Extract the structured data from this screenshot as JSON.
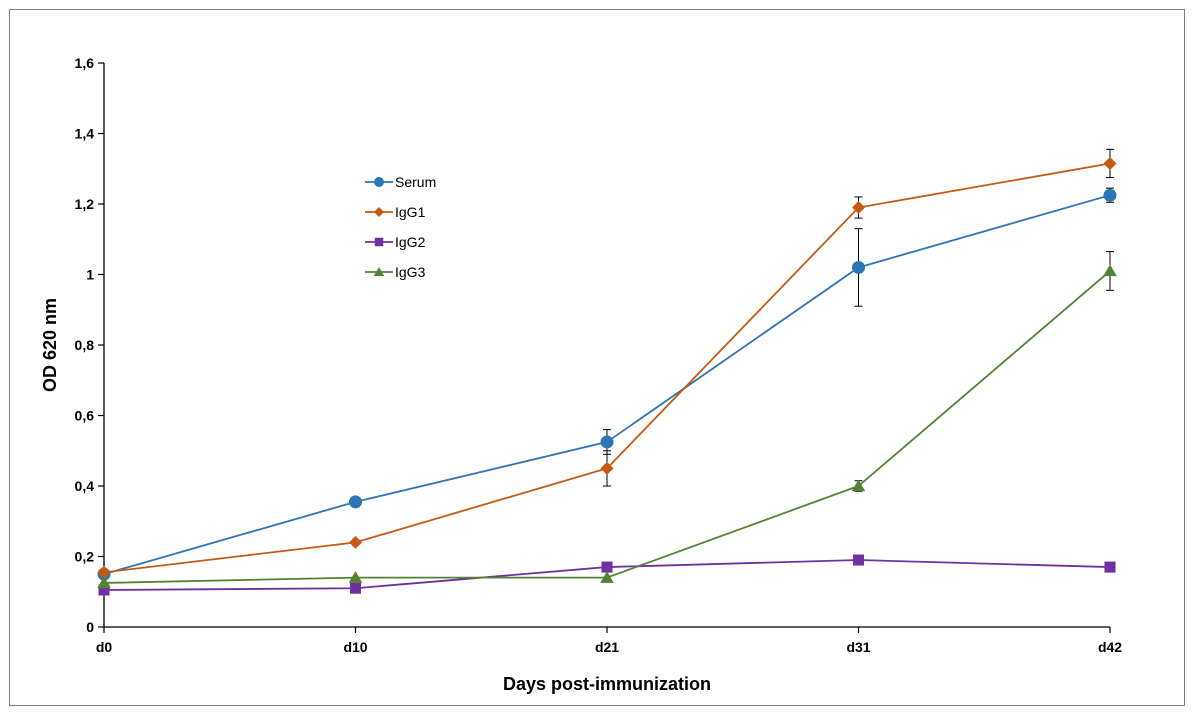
{
  "chart_data": {
    "type": "line",
    "title": "",
    "xlabel": "Days post-immunization",
    "ylabel": "OD 620 nm",
    "categories": [
      "d0",
      "d10",
      "d21",
      "d31",
      "d42"
    ],
    "ylim": [
      0,
      1.6
    ],
    "yticks": [
      "0",
      "0,2",
      "0,4",
      "0,6",
      "0,8",
      "1",
      "1,2",
      "1,4",
      "1,6"
    ],
    "grid": false,
    "legend_position": "upper-left-center",
    "series": [
      {
        "name": "Serum",
        "color": "#2e75b6",
        "marker": "circle",
        "values": [
          0.15,
          0.355,
          0.525,
          1.02,
          1.225
        ],
        "errors": [
          0,
          0,
          0.035,
          0.11,
          0.02
        ]
      },
      {
        "name": "IgG1",
        "color": "#c55a11",
        "marker": "diamond",
        "values": [
          0.155,
          0.24,
          0.45,
          1.19,
          1.315
        ],
        "errors": [
          0,
          0,
          0.05,
          0.03,
          0.04
        ]
      },
      {
        "name": "IgG2",
        "color": "#7030a0",
        "marker": "square",
        "values": [
          0.105,
          0.11,
          0.17,
          0.19,
          0.17
        ],
        "errors": [
          0,
          0,
          0,
          0,
          0
        ]
      },
      {
        "name": "IgG3",
        "color": "#548235",
        "marker": "triangle",
        "values": [
          0.125,
          0.14,
          0.14,
          0.4,
          1.01
        ],
        "errors": [
          0,
          0,
          0,
          0.015,
          0.055
        ]
      }
    ]
  }
}
